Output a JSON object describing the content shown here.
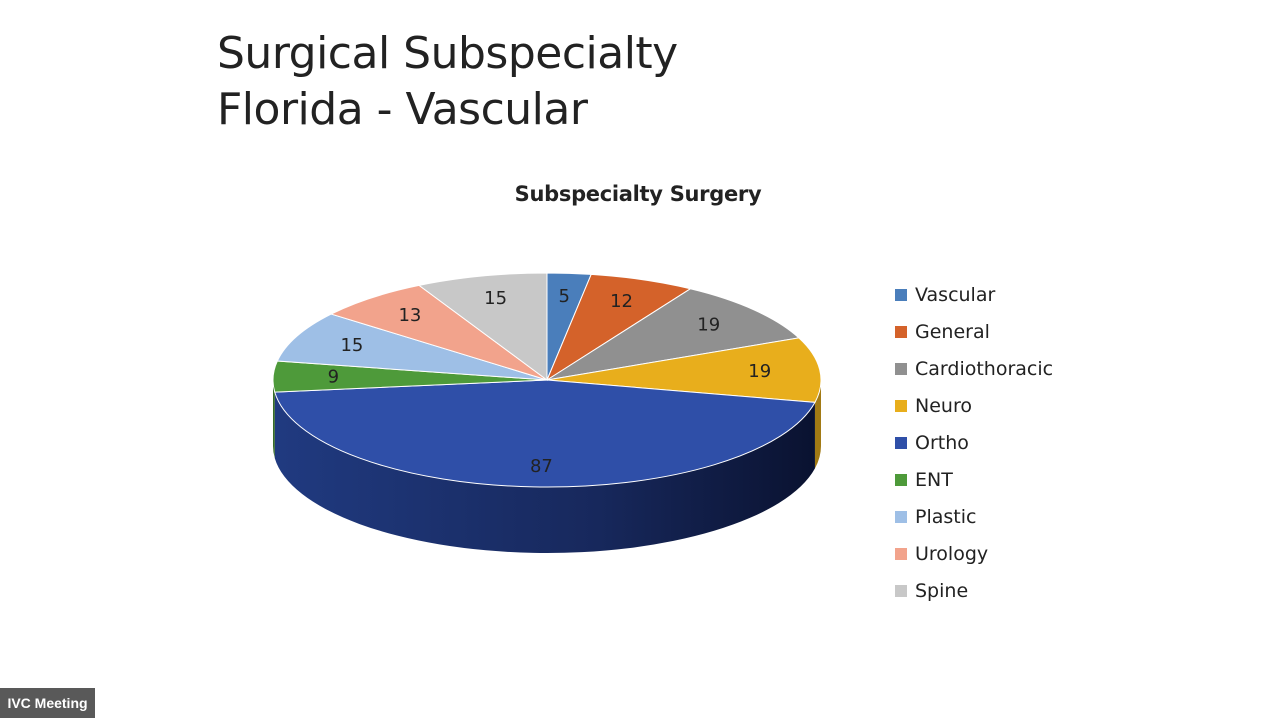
{
  "slide": {
    "title_line1": "Surgical Subspecialty",
    "title_line2": "Florida - Vascular"
  },
  "chart_data": {
    "type": "pie",
    "title": "Subspecialty Surgery",
    "style": "3d",
    "legend_position": "right",
    "categories": [
      "Vascular",
      "General",
      "Cardiothoracic",
      "Neuro",
      "Ortho",
      "ENT",
      "Plastic",
      "Urology",
      "Spine"
    ],
    "values": [
      5,
      12,
      19,
      19,
      87,
      9,
      15,
      13,
      15
    ],
    "colors": [
      "#4a7ebb",
      "#d4622a",
      "#909090",
      "#e8ae1c",
      "#2f4fa8",
      "#4e9a3a",
      "#9ebfe6",
      "#f2a38c",
      "#c8c8c8"
    ]
  },
  "overlay": {
    "meeting_label": "IVC Meeting"
  }
}
